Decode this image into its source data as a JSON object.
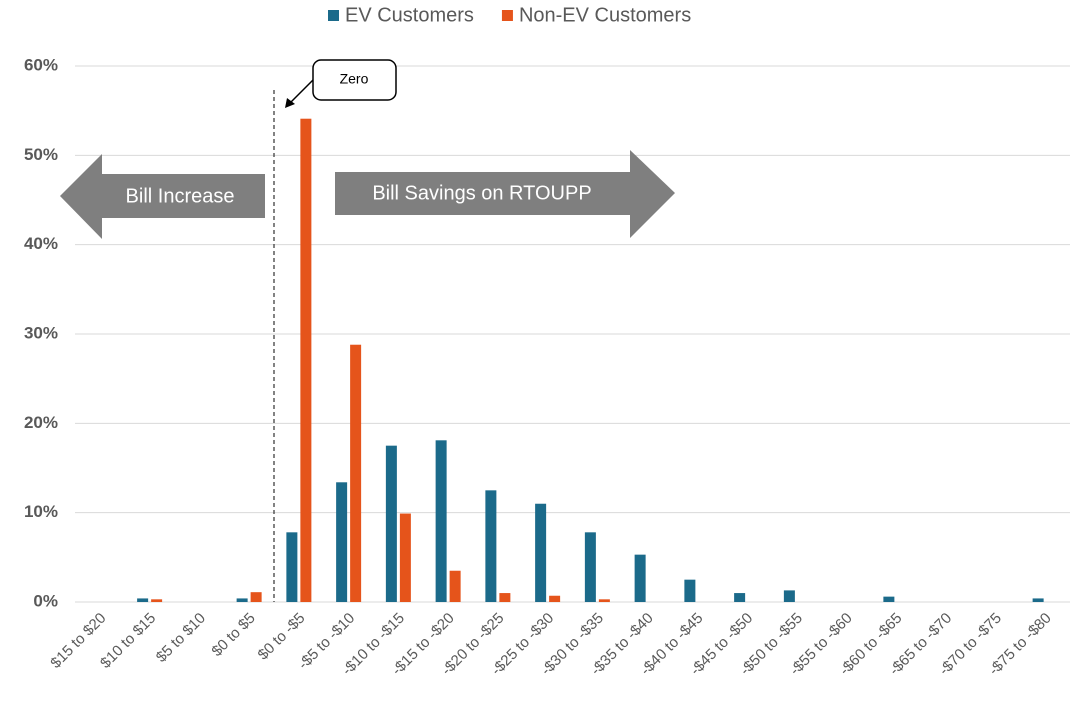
{
  "chart_data": {
    "type": "bar",
    "categories": [
      "$15 to $20",
      "$10 to $15",
      "$5 to $10",
      "$0 to $5",
      "$0 to -$5",
      "-$5 to -$10",
      "-$10 to -$15",
      "-$15 to -$20",
      "-$20 to -$25",
      "-$25 to -$30",
      "-$30 to -$35",
      "-$35 to -$40",
      "-$40 to -$45",
      "-$45 to -$50",
      "-$50 to -$55",
      "-$55 to -$60",
      "-$60 to -$65",
      "-$65 to -$70",
      "-$70 to -$75",
      "-$75 to -$80"
    ],
    "series": [
      {
        "name": "EV Customers",
        "color": "#1b6a8a",
        "values": [
          0,
          0.4,
          0,
          0.4,
          7.8,
          13.4,
          17.5,
          18.1,
          12.5,
          11,
          7.8,
          5.3,
          2.5,
          1.0,
          1.3,
          0,
          0.6,
          0,
          0,
          0.4
        ]
      },
      {
        "name": "Non-EV Customers",
        "color": "#e5541b",
        "values": [
          0,
          0.3,
          0,
          1.1,
          54.1,
          28.8,
          9.9,
          3.5,
          1.0,
          0.7,
          0.3,
          0,
          0,
          0,
          0,
          0,
          0,
          0,
          0,
          0
        ]
      }
    ],
    "ylim": [
      0,
      60
    ],
    "yticks": [
      {
        "value": 0,
        "label": "0%"
      },
      {
        "value": 10,
        "label": "10%"
      },
      {
        "value": 20,
        "label": "20%"
      },
      {
        "value": 30,
        "label": "30%"
      },
      {
        "value": 40,
        "label": "40%"
      },
      {
        "value": 50,
        "label": "50%"
      },
      {
        "value": 60,
        "label": "60%"
      }
    ],
    "grid": true,
    "legend": "top",
    "annotations": [
      "Zero",
      "Bill Increase",
      "Bill Savings on RTOUPP"
    ]
  }
}
